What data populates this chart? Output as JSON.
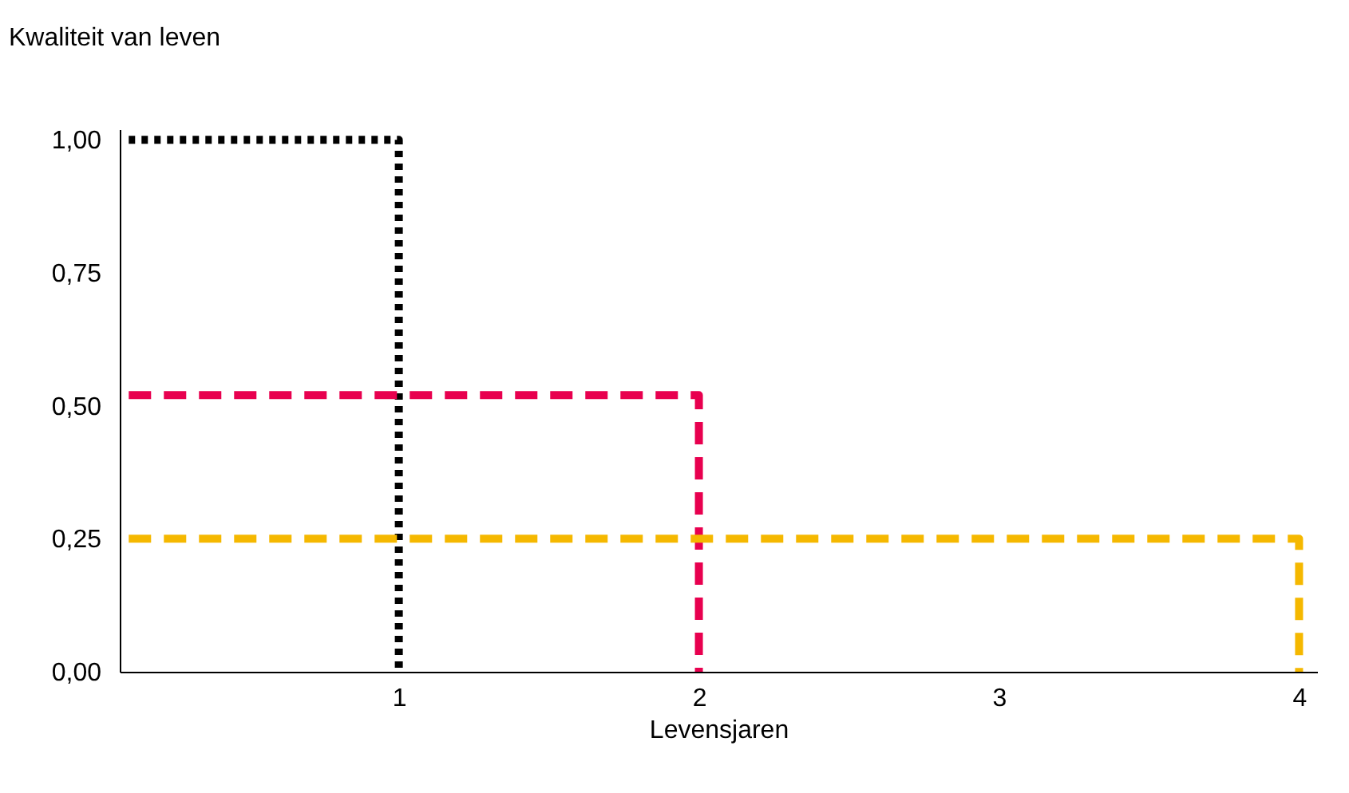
{
  "chart_data": {
    "type": "line",
    "ylabel": "Kwaliteit van leven",
    "xlabel": "Levensjaren",
    "series": [
      {
        "color": "#000000",
        "line_style": "dotted",
        "x": [
          0.1,
          1,
          1
        ],
        "values": [
          1,
          1,
          0
        ]
      },
      {
        "color": "#e8004f",
        "line_style": "dashed",
        "x": [
          0.1,
          2,
          2
        ],
        "values": [
          0.52,
          0.52,
          0
        ]
      },
      {
        "color": "#f5b800",
        "line_style": "dashed",
        "x": [
          0.1,
          4,
          4
        ],
        "values": [
          0.25,
          0.25,
          0
        ]
      }
    ],
    "xlim": [
      0.07,
      4.06
    ],
    "xticks": [
      1,
      2,
      3,
      4
    ],
    "ylim": [
      0,
      1.02
    ],
    "yticks": [
      {
        "value": 0,
        "label": "0,00"
      },
      {
        "value": 0.25,
        "label": "0,25"
      },
      {
        "value": 0.5,
        "label": "0,50"
      },
      {
        "value": 0.75,
        "label": "0,75"
      },
      {
        "value": 1,
        "label": "1,00"
      }
    ],
    "grid": false,
    "marker": "none"
  }
}
